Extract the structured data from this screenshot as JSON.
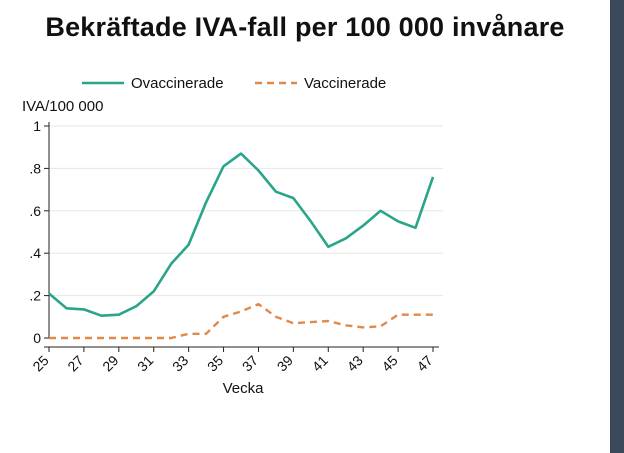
{
  "chart_data": {
    "type": "line",
    "title": "Bekräftade IVA-fall per 100 000 invånare",
    "ylabel": "IVA/100 000",
    "xlabel": "Vecka",
    "x": [
      25,
      26,
      27,
      28,
      29,
      30,
      31,
      32,
      33,
      34,
      35,
      36,
      37,
      38,
      39,
      40,
      41,
      42,
      43,
      44,
      45,
      46,
      47
    ],
    "xticks": [
      "25",
      "27",
      "29",
      "31",
      "33",
      "35",
      "37",
      "39",
      "41",
      "43",
      "45",
      "47"
    ],
    "xlim": [
      25,
      47
    ],
    "ylim": [
      0,
      1
    ],
    "yticks": [
      "0",
      ".2",
      ".4",
      ".6",
      ".8",
      "1"
    ],
    "grid": true,
    "legend_position": "top",
    "series": [
      {
        "name": "Ovaccinerade",
        "color": "#2aa58b",
        "style": "solid",
        "values": [
          0.21,
          0.14,
          0.135,
          0.105,
          0.11,
          0.15,
          0.22,
          0.35,
          0.44,
          0.64,
          0.81,
          0.87,
          0.79,
          0.69,
          0.66,
          0.55,
          0.43,
          0.47,
          0.53,
          0.6,
          0.55,
          0.52,
          0.76
        ]
      },
      {
        "name": "Vaccinerade",
        "color": "#e08a4a",
        "style": "dashed",
        "values": [
          0,
          0,
          0,
          0,
          0,
          0,
          0,
          0,
          0.02,
          0.02,
          0.1,
          0.125,
          0.16,
          0.1,
          0.07,
          0.075,
          0.08,
          0.06,
          0.05,
          0.055,
          0.11,
          0.11,
          0.11
        ]
      }
    ]
  }
}
